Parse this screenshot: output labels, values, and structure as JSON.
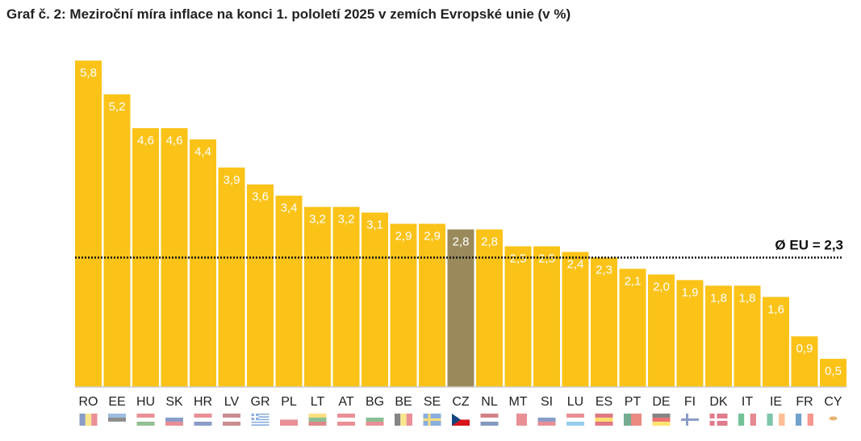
{
  "chart_data": {
    "type": "bar",
    "title": "Graf č. 2: Meziroční míra inflace na konci 1. pololetí 2025 v zemích Evropské unie (v %)",
    "xlabel": "",
    "ylabel": "",
    "ylim": [
      0,
      6
    ],
    "grid": false,
    "categories": [
      "RO",
      "EE",
      "HU",
      "SK",
      "HR",
      "LV",
      "GR",
      "PL",
      "LT",
      "AT",
      "BG",
      "BE",
      "SE",
      "CZ",
      "NL",
      "MT",
      "SI",
      "LU",
      "ES",
      "PT",
      "DE",
      "FI",
      "DK",
      "IT",
      "IE",
      "FR",
      "CY"
    ],
    "values": [
      5.8,
      5.2,
      4.6,
      4.6,
      4.4,
      3.9,
      3.6,
      3.4,
      3.2,
      3.2,
      3.1,
      2.9,
      2.9,
      2.8,
      2.8,
      2.5,
      2.5,
      2.4,
      2.3,
      2.1,
      2.0,
      1.9,
      1.8,
      1.8,
      1.6,
      0.9,
      0.5
    ],
    "value_labels": [
      "5,8",
      "5,2",
      "4,6",
      "4,6",
      "4,4",
      "3,9",
      "3,6",
      "3,4",
      "3,2",
      "3,2",
      "3,1",
      "2,9",
      "2,9",
      "2,8",
      "2,8",
      "2,5",
      "2,5",
      "2,4",
      "2,3",
      "2,1",
      "2,0",
      "1,9",
      "1,8",
      "1,8",
      "1,6",
      "0,9",
      "0,5"
    ],
    "highlight": "CZ",
    "reference_line": {
      "value": 2.3,
      "label": "Ø EU = 2,3"
    },
    "colors": {
      "bar": "#FBC318",
      "highlight": "#9A8A5B",
      "line": "#111111"
    }
  }
}
